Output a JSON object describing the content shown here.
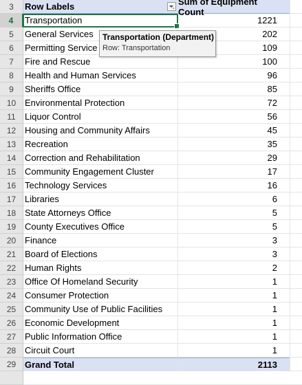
{
  "pivot": {
    "header": {
      "row_number": "3",
      "label": "Row Labels",
      "value": "Sum of Equipment Count",
      "filter_icon": "filter-dropdown-icon"
    },
    "rows": [
      {
        "row_number": "4",
        "label": "Transportation",
        "value": "1221"
      },
      {
        "row_number": "5",
        "label": "General Services",
        "value": "202"
      },
      {
        "row_number": "6",
        "label": "Permitting Service",
        "value": "109"
      },
      {
        "row_number": "7",
        "label": "Fire and Rescue",
        "value": "100"
      },
      {
        "row_number": "8",
        "label": "Health and Human Services",
        "value": "96"
      },
      {
        "row_number": "9",
        "label": "Sheriffs Office",
        "value": "85"
      },
      {
        "row_number": "10",
        "label": "Environmental Protection",
        "value": "72"
      },
      {
        "row_number": "11",
        "label": "Liquor Control",
        "value": "56"
      },
      {
        "row_number": "12",
        "label": "Housing and Community Affairs",
        "value": "45"
      },
      {
        "row_number": "13",
        "label": "Recreation",
        "value": "35"
      },
      {
        "row_number": "14",
        "label": "Correction and Rehabilitation",
        "value": "29"
      },
      {
        "row_number": "15",
        "label": "Community Engagement Cluster",
        "value": "17"
      },
      {
        "row_number": "16",
        "label": "Technology Services",
        "value": "16"
      },
      {
        "row_number": "17",
        "label": "Libraries",
        "value": "6"
      },
      {
        "row_number": "18",
        "label": "State Attorneys Office",
        "value": "5"
      },
      {
        "row_number": "19",
        "label": "County Executives Office",
        "value": "5"
      },
      {
        "row_number": "20",
        "label": "Finance",
        "value": "3"
      },
      {
        "row_number": "21",
        "label": "Board of Elections",
        "value": "3"
      },
      {
        "row_number": "22",
        "label": "Human Rights",
        "value": "2"
      },
      {
        "row_number": "23",
        "label": "Office Of Homeland Security",
        "value": "1"
      },
      {
        "row_number": "24",
        "label": "Consumer Protection",
        "value": "1"
      },
      {
        "row_number": "25",
        "label": "Community Use of Public Facilities",
        "value": "1"
      },
      {
        "row_number": "26",
        "label": "Economic Development",
        "value": "1"
      },
      {
        "row_number": "27",
        "label": "Public Information Office",
        "value": "1"
      },
      {
        "row_number": "28",
        "label": "Circuit Court",
        "value": "1"
      }
    ],
    "total": {
      "row_number": "29",
      "label": "Grand Total",
      "value": "2113"
    },
    "selected_row_index": 0
  },
  "tooltip": {
    "title": "Transportation  (Department)",
    "detail": "Row: Transportation"
  },
  "colors": {
    "header_fill": "#d9e1f2",
    "selection_border": "#217346",
    "row_number_fill": "#e6e6e6"
  }
}
